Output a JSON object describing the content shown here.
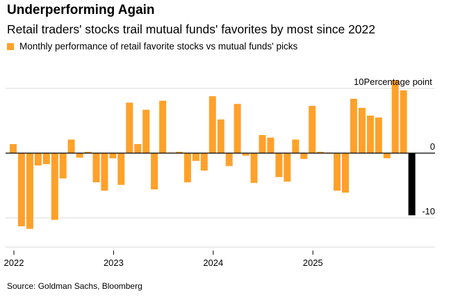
{
  "title": "Underperforming Again",
  "subtitle": "Retail traders' stocks trail mutual funds' favorites by most since 2022",
  "source": "Source: Goldman Sachs, Bloomberg",
  "colors": {
    "positive": "#FFA12A",
    "latest": "#000000",
    "grid": "#d9d9d9",
    "axis": "#000000"
  },
  "chart_data": {
    "type": "bar",
    "legend": [
      "Monthly performance of retail favorite stocks vs mutual funds' picks"
    ],
    "unit_label": "Percentage point",
    "ylim": [
      -15,
      13
    ],
    "yticks": [
      10,
      0,
      -10
    ],
    "ytick_labels": [
      "10",
      "0",
      "-10"
    ],
    "xtick_labels": [
      "2022",
      "2023",
      "2024",
      "2025"
    ],
    "xticks_month_index": [
      0,
      12,
      24,
      36
    ],
    "grid": true,
    "categories": [
      "2022-01",
      "2022-02",
      "2022-03",
      "2022-04",
      "2022-05",
      "2022-06",
      "2022-07",
      "2022-08",
      "2022-09",
      "2022-10",
      "2022-11",
      "2022-12",
      "2023-01",
      "2023-02",
      "2023-03",
      "2023-04",
      "2023-05",
      "2023-06",
      "2023-07",
      "2023-08",
      "2023-09",
      "2023-10",
      "2023-11",
      "2023-12",
      "2024-01",
      "2024-02",
      "2024-03",
      "2024-04",
      "2024-05",
      "2024-06",
      "2024-07",
      "2024-08",
      "2024-09",
      "2024-10",
      "2024-11",
      "2024-12",
      "2025-01",
      "2025-02",
      "2025-03",
      "2025-04",
      "2025-05",
      "2025-06",
      "2025-07",
      "2025-08",
      "2025-09",
      "2025-10",
      "2025-11",
      "2025-12",
      "2026-01"
    ],
    "values": [
      1.4,
      -11.3,
      -11.7,
      -1.9,
      -1.7,
      -10.3,
      -3.9,
      2.1,
      -0.7,
      0.2,
      -4.5,
      -5.8,
      -0.8,
      -4.9,
      7.8,
      1.4,
      6.7,
      -5.6,
      8.1,
      0.0,
      0.2,
      -4.5,
      -1.2,
      -2.7,
      8.8,
      5.2,
      -2.0,
      7.6,
      -0.4,
      -4.6,
      2.8,
      2.4,
      -3.7,
      -4.4,
      2.1,
      -0.9,
      7.3,
      0.2,
      0.0,
      -5.8,
      -6.1,
      8.4,
      7.0,
      5.8,
      5.5,
      -0.8,
      11.3,
      9.7,
      -9.6
    ]
  }
}
